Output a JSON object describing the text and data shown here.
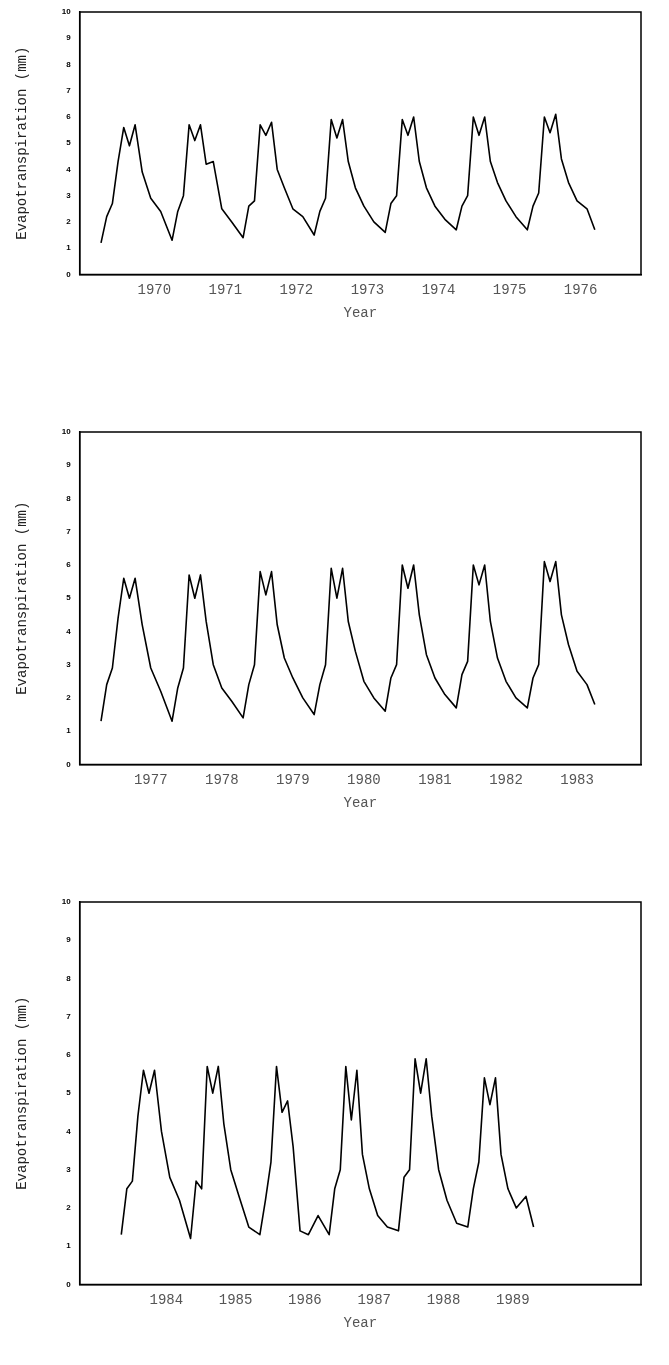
{
  "chart_data": [
    {
      "type": "line",
      "xlabel": "Year",
      "ylabel": "Evapotranspiration (mm)",
      "color": "#000000",
      "marker": "none",
      "xlim": [
        1968.95,
        1976.85
      ],
      "ylim": [
        0,
        10
      ],
      "yticks": [
        0,
        1,
        2,
        3,
        4,
        5,
        6,
        7,
        8,
        9,
        10
      ],
      "xticks": [
        1970,
        1971,
        1972,
        1973,
        1974,
        1975,
        1976
      ],
      "x": [
        1969.25,
        1969.33,
        1969.41,
        1969.49,
        1969.57,
        1969.65,
        1969.73,
        1969.83,
        1969.95,
        1970.09,
        1970.25,
        1970.33,
        1970.41,
        1970.49,
        1970.57,
        1970.65,
        1970.73,
        1970.83,
        1970.95,
        1971.09,
        1971.25,
        1971.33,
        1971.41,
        1971.49,
        1971.57,
        1971.65,
        1971.73,
        1971.83,
        1971.95,
        1972.09,
        1972.25,
        1972.33,
        1972.41,
        1972.49,
        1972.57,
        1972.65,
        1972.73,
        1972.83,
        1972.95,
        1973.09,
        1973.25,
        1973.33,
        1973.41,
        1973.49,
        1973.57,
        1973.65,
        1973.73,
        1973.83,
        1973.95,
        1974.09,
        1974.25,
        1974.33,
        1974.41,
        1974.49,
        1974.57,
        1974.65,
        1974.73,
        1974.83,
        1974.95,
        1975.09,
        1975.25,
        1975.33,
        1975.41,
        1975.49,
        1975.57,
        1975.65,
        1975.73,
        1975.83,
        1975.95,
        1976.09,
        1976.2
      ],
      "values": [
        1.2,
        2.2,
        2.7,
        4.3,
        5.6,
        4.9,
        5.7,
        3.9,
        2.9,
        2.4,
        1.3,
        2.4,
        3.0,
        5.7,
        5.1,
        5.7,
        4.2,
        4.3,
        2.5,
        2.0,
        1.4,
        2.6,
        2.8,
        5.7,
        5.3,
        5.8,
        4.0,
        3.3,
        2.5,
        2.2,
        1.5,
        2.4,
        2.9,
        5.9,
        5.2,
        5.9,
        4.3,
        3.3,
        2.6,
        2.0,
        1.6,
        2.7,
        3.0,
        5.9,
        5.3,
        6.0,
        4.3,
        3.3,
        2.6,
        2.1,
        1.7,
        2.6,
        3.0,
        6.0,
        5.3,
        6.0,
        4.3,
        3.5,
        2.8,
        2.2,
        1.7,
        2.6,
        3.1,
        6.0,
        5.4,
        6.1,
        4.4,
        3.5,
        2.8,
        2.5,
        1.7
      ]
    },
    {
      "type": "line",
      "xlabel": "Year",
      "ylabel": "Evapotranspiration (mm)",
      "color": "#000000",
      "marker": "none",
      "xlim": [
        1976.0,
        1983.9
      ],
      "ylim": [
        0,
        10
      ],
      "yticks": [
        0,
        1,
        2,
        3,
        4,
        5,
        6,
        7,
        8,
        9,
        10
      ],
      "xticks": [
        1977,
        1978,
        1979,
        1980,
        1981,
        1982,
        1983
      ],
      "x": [
        1976.3,
        1976.38,
        1976.46,
        1976.54,
        1976.62,
        1976.7,
        1976.78,
        1976.88,
        1977.0,
        1977.14,
        1977.3,
        1977.38,
        1977.46,
        1977.54,
        1977.62,
        1977.7,
        1977.78,
        1977.88,
        1978.0,
        1978.14,
        1978.3,
        1978.38,
        1978.46,
        1978.54,
        1978.62,
        1978.7,
        1978.78,
        1978.88,
        1979.0,
        1979.14,
        1979.3,
        1979.38,
        1979.46,
        1979.54,
        1979.62,
        1979.7,
        1979.78,
        1979.88,
        1980.0,
        1980.14,
        1980.3,
        1980.38,
        1980.46,
        1980.54,
        1980.62,
        1980.7,
        1980.78,
        1980.88,
        1981.0,
        1981.14,
        1981.3,
        1981.38,
        1981.46,
        1981.54,
        1981.62,
        1981.7,
        1981.78,
        1981.88,
        1982.0,
        1982.14,
        1982.3,
        1982.38,
        1982.46,
        1982.54,
        1982.62,
        1982.7,
        1982.78,
        1982.88,
        1983.0,
        1983.14,
        1983.25
      ],
      "values": [
        1.3,
        2.4,
        2.9,
        4.4,
        5.6,
        5.0,
        5.6,
        4.2,
        2.9,
        2.2,
        1.3,
        2.3,
        2.9,
        5.7,
        5.0,
        5.7,
        4.3,
        3.0,
        2.3,
        1.9,
        1.4,
        2.4,
        3.0,
        5.8,
        5.1,
        5.8,
        4.2,
        3.2,
        2.6,
        2.0,
        1.5,
        2.4,
        3.0,
        5.9,
        5.0,
        5.9,
        4.3,
        3.4,
        2.5,
        2.0,
        1.6,
        2.6,
        3.0,
        6.0,
        5.3,
        6.0,
        4.5,
        3.3,
        2.6,
        2.1,
        1.7,
        2.7,
        3.1,
        6.0,
        5.4,
        6.0,
        4.3,
        3.2,
        2.5,
        2.0,
        1.7,
        2.6,
        3.0,
        6.1,
        5.5,
        6.1,
        4.5,
        3.6,
        2.8,
        2.4,
        1.8
      ]
    },
    {
      "type": "line",
      "xlabel": "Year",
      "ylabel": "Evapotranspiration (mm)",
      "color": "#000000",
      "marker": "none",
      "xlim": [
        1982.75,
        1990.85
      ],
      "ylim": [
        0,
        10
      ],
      "yticks": [
        0,
        1,
        2,
        3,
        4,
        5,
        6,
        7,
        8,
        9,
        10
      ],
      "xticks": [
        1984,
        1985,
        1986,
        1987,
        1988,
        1989
      ],
      "x": [
        1983.35,
        1983.43,
        1983.51,
        1983.59,
        1983.67,
        1983.75,
        1983.83,
        1983.93,
        1984.05,
        1984.19,
        1984.35,
        1984.43,
        1984.51,
        1984.59,
        1984.67,
        1984.75,
        1984.83,
        1984.93,
        1985.05,
        1985.19,
        1985.35,
        1985.43,
        1985.51,
        1985.59,
        1985.67,
        1985.75,
        1985.83,
        1985.93,
        1986.05,
        1986.19,
        1986.35,
        1986.43,
        1986.51,
        1986.59,
        1986.67,
        1986.75,
        1986.83,
        1986.93,
        1987.05,
        1987.19,
        1987.35,
        1987.43,
        1987.51,
        1987.59,
        1987.67,
        1987.75,
        1987.83,
        1987.93,
        1988.05,
        1988.19,
        1988.35,
        1988.43,
        1988.51,
        1988.59,
        1988.67,
        1988.75,
        1988.83,
        1988.93,
        1989.05,
        1989.19,
        1989.3
      ],
      "values": [
        1.3,
        2.5,
        2.7,
        4.4,
        5.6,
        5.0,
        5.6,
        4.0,
        2.8,
        2.2,
        1.2,
        2.7,
        2.5,
        5.7,
        5.0,
        5.7,
        4.2,
        3.0,
        2.3,
        1.5,
        1.3,
        2.2,
        3.2,
        5.7,
        4.5,
        4.8,
        3.6,
        1.4,
        1.3,
        1.8,
        1.3,
        2.5,
        3.0,
        5.7,
        4.3,
        5.6,
        3.4,
        2.5,
        1.8,
        1.5,
        1.4,
        2.8,
        3.0,
        5.9,
        5.0,
        5.9,
        4.4,
        3.0,
        2.2,
        1.6,
        1.5,
        2.5,
        3.2,
        5.4,
        4.7,
        5.4,
        3.4,
        2.5,
        2.0,
        2.3,
        1.5
      ]
    }
  ]
}
